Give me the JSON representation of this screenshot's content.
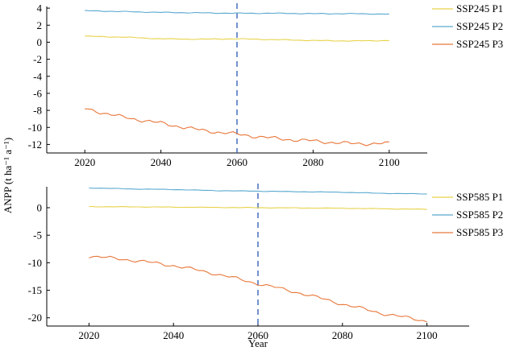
{
  "chart_data": [
    {
      "type": "line",
      "xlabel": "",
      "ylabel": "",
      "xlim": [
        2010,
        2110
      ],
      "ylim": [
        -13,
        4.2
      ],
      "xticks": [
        2020,
        2040,
        2060,
        2080,
        2100
      ],
      "yticks": [
        4,
        2,
        0,
        -2,
        -4,
        -6,
        -8,
        -10,
        -12
      ],
      "vline": 2060,
      "x": [
        2020,
        2030,
        2040,
        2050,
        2060,
        2070,
        2080,
        2090,
        2100
      ],
      "series": [
        {
          "name": "SSP245 P1",
          "color": "#e8d24a",
          "values": [
            0.7,
            0.6,
            0.4,
            0.35,
            0.4,
            0.3,
            0.2,
            0.15,
            0.2
          ]
        },
        {
          "name": "SSP245 P2",
          "color": "#5aa9cf",
          "values": [
            3.7,
            3.6,
            3.5,
            3.45,
            3.4,
            3.4,
            3.35,
            3.35,
            3.3
          ]
        },
        {
          "name": "SSP245 P3",
          "color": "#e8773a",
          "values": [
            -7.8,
            -8.8,
            -9.5,
            -10.3,
            -10.8,
            -11.3,
            -11.6,
            -11.9,
            -11.9
          ]
        }
      ]
    },
    {
      "type": "line",
      "xlabel": "Year",
      "ylabel": "",
      "xlim": [
        2010,
        2110
      ],
      "ylim": [
        -21.5,
        3.8
      ],
      "xticks": [
        2020,
        2040,
        2060,
        2080,
        2100
      ],
      "yticks": [
        0,
        -5,
        -10,
        -15,
        -20
      ],
      "vline": 2060,
      "x": [
        2020,
        2030,
        2040,
        2050,
        2060,
        2070,
        2080,
        2090,
        2100
      ],
      "series": [
        {
          "name": "SSP585 P1",
          "color": "#e8d24a",
          "values": [
            0.2,
            0.15,
            0.1,
            0.05,
            0.0,
            -0.05,
            -0.1,
            -0.2,
            -0.3
          ]
        },
        {
          "name": "SSP585 P2",
          "color": "#5aa9cf",
          "values": [
            3.6,
            3.4,
            3.3,
            3.1,
            3.0,
            2.9,
            2.8,
            2.6,
            2.5
          ]
        },
        {
          "name": "SSP585 P3",
          "color": "#e8773a",
          "values": [
            -8.8,
            -9.5,
            -10.5,
            -12.0,
            -13.8,
            -15.5,
            -17.5,
            -19.3,
            -20.6
          ]
        }
      ]
    }
  ],
  "shared_ylabel": "ANPP (t ha⁻¹ a⁻¹)"
}
